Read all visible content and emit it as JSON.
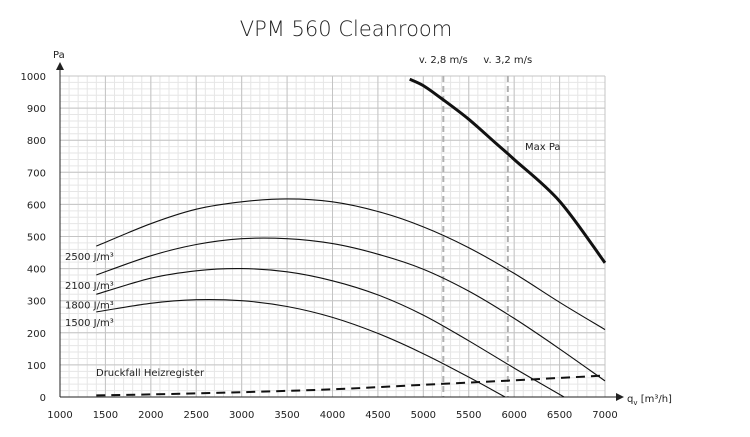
{
  "chart_data": {
    "type": "line",
    "title": "VPM 560 Cleanroom",
    "ylabel": "Pa",
    "xlabel": "q",
    "xlabel_sub": "v",
    "xlabel_unit": " [m³/h]",
    "xlim": [
      1000,
      7000
    ],
    "ylim": [
      0,
      1000
    ],
    "xticks": [
      1000,
      1500,
      2000,
      2500,
      3000,
      3500,
      4000,
      4500,
      5000,
      5500,
      6000,
      6500,
      7000
    ],
    "yticks": [
      0,
      100,
      200,
      300,
      400,
      500,
      600,
      700,
      800,
      900,
      1000
    ],
    "grid": true,
    "minor_grid_step_x": 100,
    "minor_grid_step_y": 20,
    "series": [
      {
        "name": "2500 J/m³",
        "style": "thin",
        "points": [
          [
            1400,
            470
          ],
          [
            2000,
            540
          ],
          [
            2500,
            585
          ],
          [
            3000,
            608
          ],
          [
            3500,
            617
          ],
          [
            4000,
            608
          ],
          [
            4500,
            578
          ],
          [
            5000,
            530
          ],
          [
            5500,
            465
          ],
          [
            6000,
            385
          ],
          [
            6500,
            295
          ],
          [
            7000,
            210
          ]
        ]
      },
      {
        "name": "2100 J/m³",
        "style": "thin",
        "points": [
          [
            1400,
            380
          ],
          [
            2000,
            440
          ],
          [
            2500,
            475
          ],
          [
            3000,
            493
          ],
          [
            3500,
            493
          ],
          [
            4000,
            478
          ],
          [
            4500,
            445
          ],
          [
            5000,
            398
          ],
          [
            5500,
            330
          ],
          [
            6000,
            245
          ],
          [
            6500,
            150
          ],
          [
            7000,
            50
          ]
        ]
      },
      {
        "name": "1800 J/m³",
        "style": "thin",
        "points": [
          [
            1400,
            320
          ],
          [
            2000,
            370
          ],
          [
            2500,
            393
          ],
          [
            3000,
            400
          ],
          [
            3500,
            390
          ],
          [
            4000,
            362
          ],
          [
            4500,
            318
          ],
          [
            5000,
            255
          ],
          [
            5500,
            175
          ],
          [
            6000,
            90
          ],
          [
            6550,
            0
          ]
        ]
      },
      {
        "name": "1500 J/m³",
        "style": "thin",
        "points": [
          [
            1400,
            265
          ],
          [
            2000,
            292
          ],
          [
            2500,
            303
          ],
          [
            3000,
            300
          ],
          [
            3500,
            282
          ],
          [
            4000,
            248
          ],
          [
            4500,
            198
          ],
          [
            5000,
            135
          ],
          [
            5500,
            62
          ],
          [
            5900,
            0
          ]
        ]
      },
      {
        "name": "Max Pa",
        "style": "thick",
        "points": [
          [
            4850,
            990
          ],
          [
            5000,
            970
          ],
          [
            5200,
            930
          ],
          [
            5500,
            865
          ],
          [
            5800,
            790
          ],
          [
            6000,
            740
          ],
          [
            6500,
            610
          ],
          [
            7000,
            418
          ]
        ]
      },
      {
        "name": "Druckfall Heizregister",
        "style": "dashed",
        "points": [
          [
            1400,
            5
          ],
          [
            2000,
            8
          ],
          [
            3000,
            15
          ],
          [
            4000,
            24
          ],
          [
            5000,
            38
          ],
          [
            6000,
            52
          ],
          [
            7000,
            67
          ]
        ]
      }
    ],
    "vlines": [
      {
        "label": "v. 2,8 m/s",
        "x": 5220
      },
      {
        "label": "v. 3,2 m/s",
        "x": 5930
      }
    ]
  }
}
